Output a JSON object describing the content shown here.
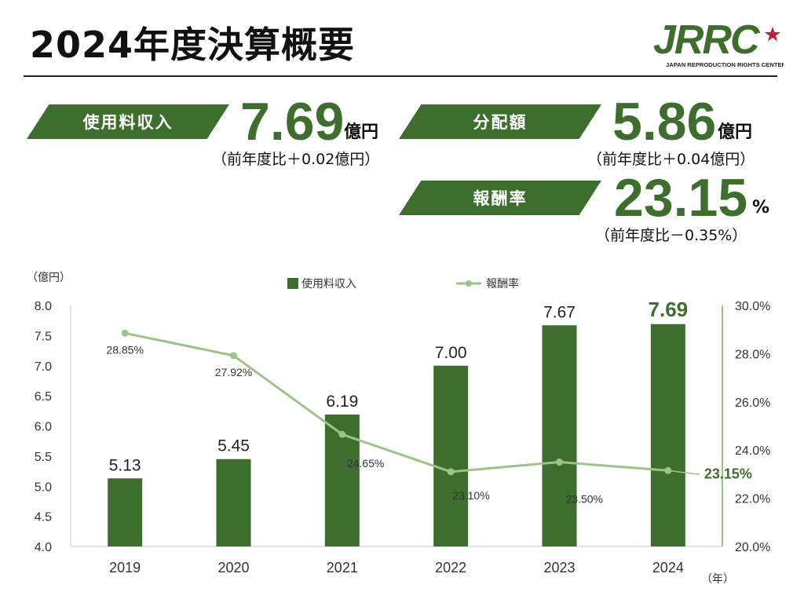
{
  "page": {
    "title": "2024年度決算概要",
    "logo_text": "JRRC",
    "logo_subtext": "JAPAN REPRODUCTION RIGHTS CENTER"
  },
  "kpis": {
    "usage_fee": {
      "label": "使用料収入",
      "value": "7.69",
      "unit": "億円",
      "change": "（前年度比＋0.02億円）"
    },
    "distribution": {
      "label": "分配額",
      "value": "5.86",
      "unit": "億円",
      "change": "（前年度比＋0.04億円）"
    },
    "commission_rate": {
      "label": "報酬率",
      "value": "23.15",
      "unit": "%",
      "change": "（前年度比－0.35%）"
    }
  },
  "colors": {
    "bar": "#3e6e2e",
    "line": "#9dc488",
    "accent": "#3e6e2e",
    "logo_star": "#c0203a"
  },
  "chart_data": {
    "type": "bar",
    "categories": [
      "2019",
      "2020",
      "2021",
      "2022",
      "2023",
      "2024"
    ],
    "y_left_unit": "（億円）",
    "x_unit": "（年）",
    "ylim_left": [
      4.0,
      8.0
    ],
    "yticks_left": [
      "4.0",
      "4.5",
      "5.0",
      "5.5",
      "6.0",
      "6.5",
      "7.0",
      "7.5",
      "8.0"
    ],
    "ylim_right": [
      20.0,
      30.0
    ],
    "yticks_right": [
      "20.0%",
      "22.0%",
      "24.0%",
      "26.0%",
      "28.0%",
      "30.0%"
    ],
    "grid": false,
    "legend_position": "top",
    "series": [
      {
        "name": "使用料収入",
        "type": "bar",
        "axis": "left",
        "values": [
          5.13,
          5.45,
          6.19,
          7.0,
          7.67,
          7.69
        ],
        "labels": [
          "5.13",
          "5.45",
          "6.19",
          "7.00",
          "7.67",
          "7.69"
        ]
      },
      {
        "name": "報酬率",
        "type": "line",
        "axis": "right",
        "values": [
          28.85,
          27.92,
          24.65,
          23.1,
          23.5,
          23.15
        ],
        "labels": [
          "28.85%",
          "27.92%",
          "24.65%",
          "23.10%",
          "23.50%",
          "23.15%"
        ]
      }
    ]
  }
}
